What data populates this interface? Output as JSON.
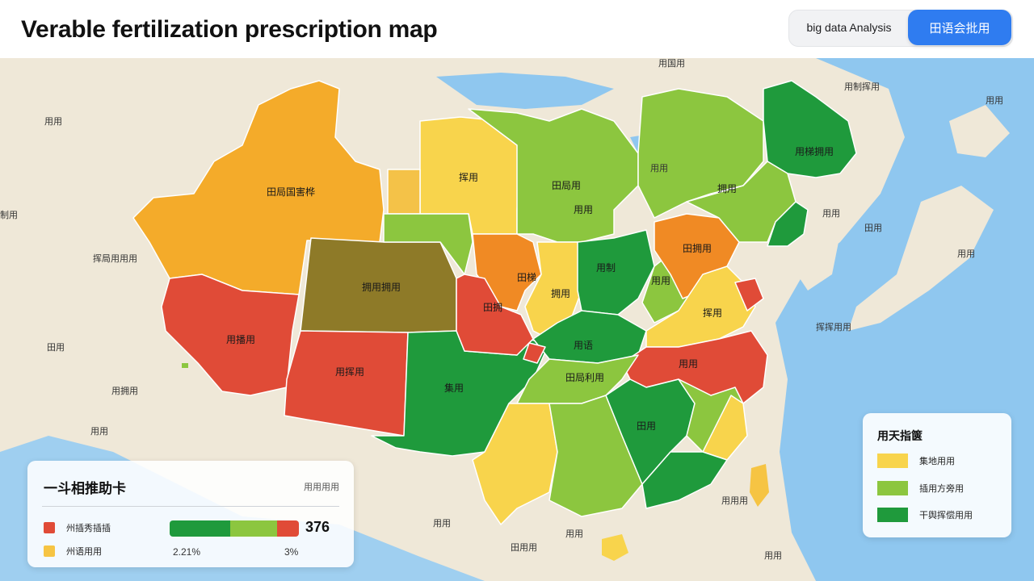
{
  "header": {
    "title": "Verable fertilization prescription map",
    "btn_analysis": "big data Analysis",
    "btn_primary": "田语会批用"
  },
  "map": {
    "region_labels": [
      "田局国害桦",
      "拥用拥用",
      "用播用",
      "用挥用",
      "集用",
      "田拥",
      "挥用",
      "田局用",
      "用用",
      "田梯",
      "拥用",
      "用制",
      "用用",
      "用语",
      "田拥用",
      "用梯拥用",
      "拥用",
      "挥用",
      "用用",
      "田局利用",
      "田用"
    ],
    "place_labels": [
      "用用",
      "挥局用用用",
      "制用",
      "田用",
      "用拥用",
      "用用",
      "用制挥用",
      "用用",
      "田用",
      "用用",
      "挥挥用用",
      "用用",
      "用用",
      "用国用",
      "用用",
      "田用用",
      "用用用",
      "用用",
      "用用"
    ]
  },
  "status_panel": {
    "title": "一斗相推助卡",
    "note": "用用用用",
    "rows": [
      {
        "label": "州插秀插插",
        "color": "#e04b37"
      },
      {
        "label": "州语用用",
        "color": "#f6c443"
      }
    ],
    "bar_segments": [
      {
        "value": 0.47,
        "color": "#1f9a3c"
      },
      {
        "value": 0.36,
        "color": "#8cc63f"
      },
      {
        "value": 0.17,
        "color": "#e04b37"
      }
    ],
    "big_value": "376",
    "pct_left": "2.21%",
    "pct_right": "3%"
  },
  "legend": {
    "title": "用天指箧",
    "items": [
      {
        "label": "集地用用",
        "color": "#f8d44c"
      },
      {
        "label": "插用方旁用",
        "color": "#8cc63f"
      },
      {
        "label": "干舆挥偿用用",
        "color": "#1f9a3c"
      }
    ]
  }
}
